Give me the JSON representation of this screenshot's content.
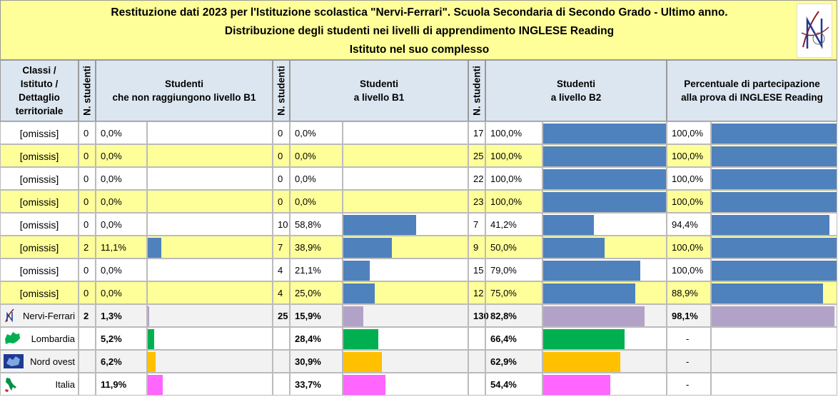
{
  "header": {
    "line1": "Restituzione dati 2023 per l'Istituzione scolastica \"Nervi-Ferrari\". Scuola Secondaria di Secondo Grado - Ultimo anno.",
    "line2": "Distribuzione degli studenti nei livelli di apprendimento INGLESE Reading",
    "line3": "Istituto nel suo complesso"
  },
  "columns": {
    "classes": "Classi / Istituto / Dettaglio territoriale",
    "n_students": "N. studenti",
    "below_b1_l1": "Studenti",
    "below_b1_l2": "che non raggiungono livello B1",
    "b1_l1": "Studenti",
    "b1_l2": "a livello B1",
    "b2_l1": "Studenti",
    "b2_l2": "a livello B2",
    "part_l1": "Percentuale di partecipazione",
    "part_l2": "alla prova di INGLESE Reading"
  },
  "colors": {
    "class_bar": "#4f81bd",
    "school_bar": "#b3a2c7",
    "lombardia_bar": "#00b050",
    "nordovest_bar": "#ffc000",
    "italia_bar": "#ff66ff",
    "stripe": "#ffff99",
    "header_bg": "#dce6f0"
  },
  "rows": [
    {
      "name": "[omissis]",
      "n1": "0",
      "p1": "0,0%",
      "v1": 0,
      "n2": "0",
      "p2": "0,0%",
      "v2": 0,
      "n3": "17",
      "p3": "100,0%",
      "v3": 100,
      "pp": "100,0%",
      "vp": 100
    },
    {
      "name": "[omissis]",
      "n1": "0",
      "p1": "0,0%",
      "v1": 0,
      "n2": "0",
      "p2": "0,0%",
      "v2": 0,
      "n3": "25",
      "p3": "100,0%",
      "v3": 100,
      "pp": "100,0%",
      "vp": 100
    },
    {
      "name": "[omissis]",
      "n1": "0",
      "p1": "0,0%",
      "v1": 0,
      "n2": "0",
      "p2": "0,0%",
      "v2": 0,
      "n3": "22",
      "p3": "100,0%",
      "v3": 100,
      "pp": "100,0%",
      "vp": 100
    },
    {
      "name": "[omissis]",
      "n1": "0",
      "p1": "0,0%",
      "v1": 0,
      "n2": "0",
      "p2": "0,0%",
      "v2": 0,
      "n3": "23",
      "p3": "100,0%",
      "v3": 100,
      "pp": "100,0%",
      "vp": 100
    },
    {
      "name": "[omissis]",
      "n1": "0",
      "p1": "0,0%",
      "v1": 0,
      "n2": "10",
      "p2": "58,8%",
      "v2": 58.8,
      "n3": "7",
      "p3": "41,2%",
      "v3": 41.2,
      "pp": "94,4%",
      "vp": 94.4
    },
    {
      "name": "[omissis]",
      "n1": "2",
      "p1": "11,1%",
      "v1": 11.1,
      "n2": "7",
      "p2": "38,9%",
      "v2": 38.9,
      "n3": "9",
      "p3": "50,0%",
      "v3": 50,
      "pp": "100,0%",
      "vp": 100
    },
    {
      "name": "[omissis]",
      "n1": "0",
      "p1": "0,0%",
      "v1": 0,
      "n2": "4",
      "p2": "21,1%",
      "v2": 21.1,
      "n3": "15",
      "p3": "79,0%",
      "v3": 79,
      "pp": "100,0%",
      "vp": 100
    },
    {
      "name": "[omissis]",
      "n1": "0",
      "p1": "0,0%",
      "v1": 0,
      "n2": "4",
      "p2": "25,0%",
      "v2": 25,
      "n3": "12",
      "p3": "75,0%",
      "v3": 75,
      "pp": "88,9%",
      "vp": 88.9
    }
  ],
  "school": {
    "name": "Nervi-Ferrari",
    "icon": "school-logo-icon",
    "n1": "2",
    "p1": "1,3%",
    "v1": 1.3,
    "n2": "25",
    "p2": "15,9%",
    "v2": 15.9,
    "n3": "130",
    "p3": "82,8%",
    "v3": 82.8,
    "pp": "98,1%",
    "vp": 98.1
  },
  "areas": [
    {
      "name": "Lombardia",
      "icon": "lombardia-map-icon",
      "color": "#00b050",
      "p1": "5,2%",
      "v1": 5.2,
      "p2": "28,4%",
      "v2": 28.4,
      "p3": "66,4%",
      "v3": 66.4,
      "pp": "-"
    },
    {
      "name": "Nord ovest",
      "icon": "nord-ovest-map-icon",
      "color": "#ffc000",
      "p1": "6,2%",
      "v1": 6.2,
      "p2": "30,9%",
      "v2": 30.9,
      "p3": "62,9%",
      "v3": 62.9,
      "pp": "-"
    },
    {
      "name": "Italia",
      "icon": "italia-map-icon",
      "color": "#ff66ff",
      "p1": "11,9%",
      "v1": 11.9,
      "p2": "33,7%",
      "v2": 33.7,
      "p3": "54,4%",
      "v3": 54.4,
      "pp": "-"
    }
  ]
}
